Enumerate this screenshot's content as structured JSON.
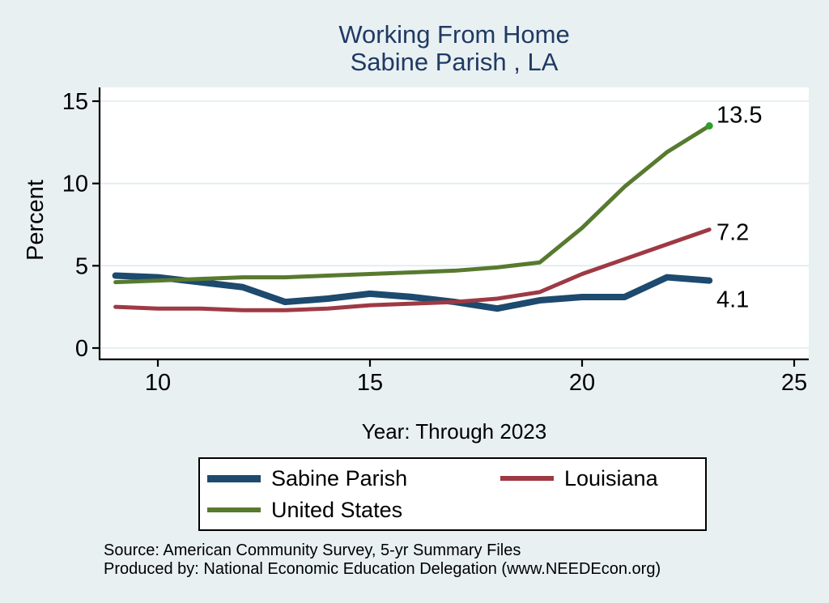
{
  "title": {
    "line1": "Working From Home",
    "line2": "Sabine Parish , LA"
  },
  "axes": {
    "y_label": "Percent",
    "x_label": "Year: Through 2023"
  },
  "footer": {
    "source": "Source: American Community Survey, 5-yr Summary Files",
    "produced_by": "Produced by: National Economic Education Delegation (www.NEEDEcon.org)"
  },
  "colors": {
    "background": "#e9f0f2",
    "plot_background": "#ffffff",
    "gridline": "#dfebef",
    "axis": "#000000",
    "title_text": "#1f3a63",
    "tick_text": "#000000",
    "end_marker": "#2da02d"
  },
  "chart_data": {
    "type": "line",
    "title": "Working From Home, Sabine Parish , LA",
    "xlabel": "Year: Through 2023",
    "ylabel": "Percent",
    "x": [
      9,
      10,
      11,
      12,
      13,
      14,
      15,
      16,
      17,
      18,
      19,
      20,
      21,
      22,
      23
    ],
    "x_ticks": [
      10,
      15,
      20,
      25
    ],
    "y_ticks": [
      0,
      5,
      10,
      15
    ],
    "xlim": [
      8.6,
      25.4
    ],
    "ylim": [
      0,
      15
    ],
    "grid": "horizontal",
    "legend_position": "below",
    "series": [
      {
        "name": "Sabine Parish",
        "color": "#1d4a6e",
        "line_width": 8,
        "values": [
          4.4,
          4.3,
          4.0,
          3.7,
          2.8,
          3.0,
          3.3,
          3.1,
          2.8,
          2.4,
          2.9,
          3.1,
          3.1,
          4.3,
          4.1
        ],
        "end_label": "4.1",
        "end_marker": false
      },
      {
        "name": "Louisiana",
        "color": "#9e3a44",
        "line_width": 5,
        "values": [
          2.5,
          2.4,
          2.4,
          2.3,
          2.3,
          2.4,
          2.6,
          2.7,
          2.8,
          3.0,
          3.4,
          4.5,
          5.4,
          6.3,
          7.2
        ],
        "end_label": "7.2",
        "end_marker": false
      },
      {
        "name": "United States",
        "color": "#577a2f",
        "line_width": 5,
        "values": [
          4.0,
          4.1,
          4.2,
          4.3,
          4.3,
          4.4,
          4.5,
          4.6,
          4.7,
          4.9,
          5.2,
          7.3,
          9.8,
          11.9,
          13.5
        ],
        "end_label": "13.5",
        "end_marker": true
      }
    ]
  }
}
